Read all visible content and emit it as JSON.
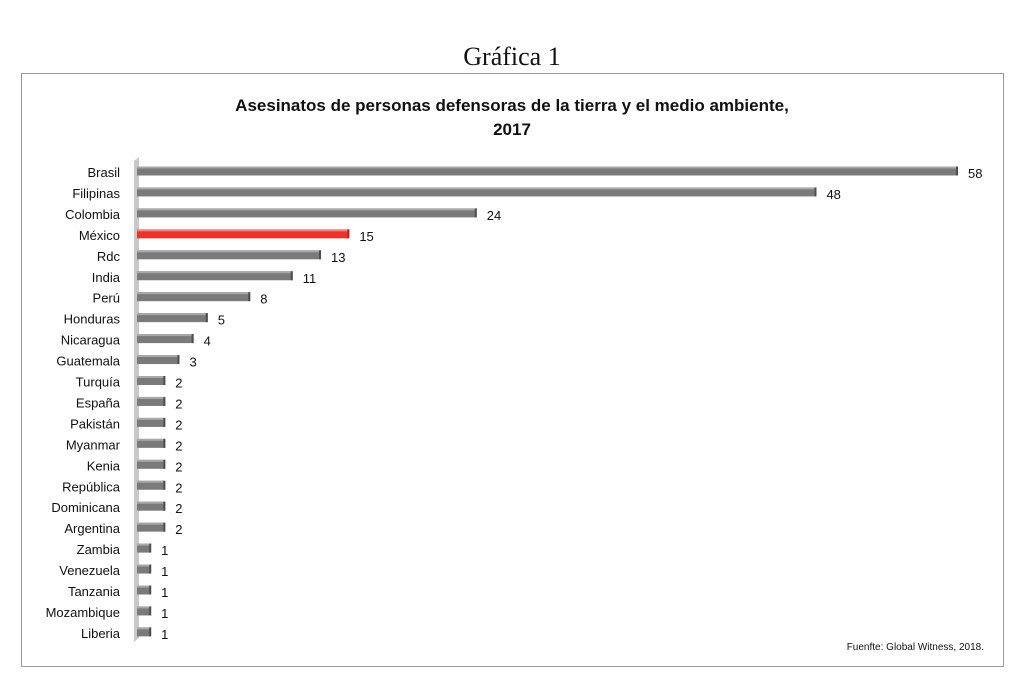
{
  "heading": "Gráfica 1",
  "chart_data": {
    "type": "bar",
    "orientation": "horizontal",
    "title_line1": "Asesinatos de personas defensoras de la tierra y el medio ambiente,",
    "title_line2": "2017",
    "categories": [
      "Brasil",
      "Filipinas",
      "Colombia",
      "México",
      "Rdc",
      "India",
      "Perú",
      "Honduras",
      "Nicaragua",
      "Guatemala",
      "Turquía",
      "España",
      "Pakistán",
      "Myanmar",
      "Kenia",
      "República",
      "Dominicana",
      "Argentina",
      "Zambia",
      "Venezuela",
      "Tanzania",
      "Mozambique",
      "Liberia"
    ],
    "values": [
      58,
      48,
      24,
      15,
      13,
      11,
      8,
      5,
      4,
      3,
      2,
      2,
      2,
      2,
      2,
      2,
      2,
      2,
      1,
      1,
      1,
      1,
      1
    ],
    "highlight_category": "México",
    "colors": {
      "bar": "#7a7a7a",
      "highlight": "#e8342a",
      "axis": "#c8c8c8"
    },
    "xlim": [
      0,
      58
    ],
    "grid": false,
    "legend": "none",
    "source": "Fuenfte: Global Witness, 2018."
  }
}
